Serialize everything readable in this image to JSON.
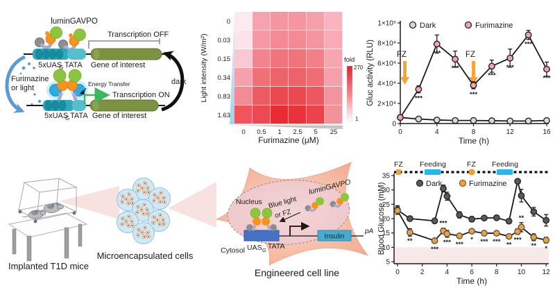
{
  "colors": {
    "teal_dna": "#2fa9bd",
    "teal_dark": "#14869c",
    "tata_light": "#55c0cd",
    "gene_olive": "#7b9240",
    "green_protein": "#8cc63f",
    "orange_protein": "#f7941e",
    "gray_protein": "#8c8e90",
    "purple_link": "#b8a5ce",
    "blue_lum": "#2fabe1",
    "blue_arrow": "#5b9bd5",
    "green_on": "#3eb75f",
    "fz_arrow": "#f5a43c",
    "fz_label": "#f0a13c",
    "feeding": "#29b6ea",
    "dark_series_top": "#d9d9d9",
    "fur_series_top": "#f2a5ad",
    "dark_series_bottom": "#595959",
    "fur_series_bottom": "#f0a13c",
    "capsule_blue": "#cfe9f7",
    "beam_pink": "#f3cbc7",
    "cell_salmon": "#f3a98e",
    "band_pink": "#f7e9e9"
  },
  "panels": {
    "circuit": {
      "lumingavpo": "luminGAVPO",
      "transcription_off": "Transcription OFF",
      "transcription_on": "Transcription ON",
      "energy_transfer": "Energy Transfer",
      "furimazine_line1": "Furimazine",
      "furimazine_line2": "or light",
      "dark": "dark",
      "uas": "5xUAS",
      "uas_sub": "G",
      "tata": "TATA",
      "gene": "Gene of interest"
    },
    "in_vivo": {
      "mice_label": "Implanted T1D mice",
      "capsules_label": "Microencapsulated cells",
      "cell_label": "Engineered cell line",
      "nucleus": "Nucleus",
      "cytosol": "Cytosol",
      "blue_light_line1": "Blue light",
      "blue_light_line2": "or FZ",
      "lumingavpo": "luminGAVPO",
      "uas": "UAS",
      "uas_sub": "G",
      "tata": "TATA",
      "insulin": "Insulin",
      "pa": "pA"
    }
  },
  "chart_data": [
    {
      "type": "heatmap",
      "xlabel": "Furimazine (μM)",
      "ylabel": "Light intensity (W/m²)",
      "x_ticks": [
        "0",
        "0.5",
        "1",
        "2.5",
        "5",
        "25"
      ],
      "y_ticks": [
        "0",
        "0.03",
        "0.15",
        "0.34",
        "0.83",
        "1.63"
      ],
      "colorbar": {
        "label": "fold",
        "max": "270",
        "min": "1"
      },
      "values": [
        [
          1,
          60,
          75,
          75,
          65,
          40
        ],
        [
          3,
          75,
          95,
          95,
          85,
          50
        ],
        [
          15,
          95,
          115,
          115,
          105,
          55
        ],
        [
          45,
          120,
          140,
          140,
          130,
          60
        ],
        [
          70,
          160,
          185,
          185,
          170,
          65
        ],
        [
          95,
          185,
          270,
          255,
          200,
          80
        ]
      ],
      "colors": [
        [
          "#fdeaf1",
          "#f7a3ad",
          "#f595a0",
          "#f595a0",
          "#f69fa9",
          "#f9b4bf"
        ],
        [
          "#fce3ea",
          "#f59aa4",
          "#f48a94",
          "#f48a94",
          "#f5959f",
          "#f8abb5"
        ],
        [
          "#f9c8d3",
          "#f3848d",
          "#f1747d",
          "#f1747d",
          "#f37f88",
          "#f7a5b0"
        ],
        [
          "#f5a1ab",
          "#f07078",
          "#ee626a",
          "#ee626a",
          "#f06d75",
          "#f5a0ab"
        ],
        [
          "#f28b93",
          "#ed5a62",
          "#eb4850",
          "#eb4850",
          "#ed575e",
          "#f3959e"
        ],
        [
          "#f3545c",
          "#eb4a52",
          "#e92b35",
          "#e9323b",
          "#ec424a",
          "#f2929b"
        ]
      ]
    },
    {
      "type": "line",
      "xlabel": "Time (h)",
      "ylabel": "Gluc activity (RLU)",
      "xlim": [
        0,
        16
      ],
      "ylim": [
        0,
        100000
      ],
      "x_ticks": [
        0,
        4,
        8,
        12,
        16
      ],
      "y_tick_vals": [
        0,
        20000,
        40000,
        60000,
        80000,
        100000
      ],
      "y_tick_labels": [
        "0",
        "2×10⁴",
        "4×10⁴",
        "6×10⁴",
        "8×10⁴",
        "1×10⁵"
      ],
      "annotations": [
        {
          "label": "FZ",
          "x": 0.5
        },
        {
          "label": "FZ",
          "x": 8
        }
      ],
      "series": [
        {
          "name": "Dark",
          "fill": "#d9d9d9",
          "stroke": "#222222",
          "x": [
            0,
            2,
            4,
            6,
            8,
            10,
            12,
            14,
            16
          ],
          "y": [
            6000,
            4500,
            3500,
            3000,
            3000,
            2800,
            2500,
            2500,
            3000
          ],
          "err": [
            1200,
            800,
            600,
            500,
            500,
            500,
            500,
            500,
            800
          ]
        },
        {
          "name": "Furimazine",
          "fill": "#f2a5ad",
          "stroke": "#222222",
          "x": [
            0,
            2,
            4,
            6,
            8,
            10,
            12,
            14,
            16
          ],
          "y": [
            6000,
            34000,
            79000,
            64000,
            38000,
            57000,
            65000,
            88000,
            54000
          ],
          "err": [
            1200,
            3500,
            9000,
            8000,
            3500,
            6000,
            9000,
            4500,
            7000
          ],
          "stars": [
            "",
            "***",
            "***",
            "***",
            "***",
            "***",
            "***",
            "***",
            "***"
          ],
          "stars_above": [
            false,
            false,
            false,
            false,
            false,
            false,
            false,
            false,
            false
          ]
        }
      ]
    },
    {
      "type": "line",
      "xlabel": "Time (h)",
      "ylabel": "Blood Glucose (mM)",
      "xlim": [
        0,
        12.3
      ],
      "ylim": [
        5,
        35
      ],
      "x_ticks": [
        0,
        2,
        4,
        6,
        8,
        10,
        12
      ],
      "y_tick_vals": [
        5,
        10,
        15,
        20,
        25,
        30,
        35
      ],
      "y_tick_labels": [
        "5",
        "10",
        "15",
        "20",
        "25",
        "30",
        "35"
      ],
      "normal_band": [
        5,
        10
      ],
      "timeline": {
        "items": [
          {
            "kind": "fz",
            "label": "FZ",
            "x": 0.15
          },
          {
            "kind": "feeding",
            "label": "Feeding",
            "x_start": 2.2,
            "x_end": 3.5
          },
          {
            "kind": "fz",
            "label": "FZ",
            "x": 6
          },
          {
            "kind": "feeding",
            "label": "Feeding",
            "x_start": 8.0,
            "x_end": 9.3
          }
        ]
      },
      "series": [
        {
          "name": "Dark",
          "fill": "#595959",
          "stroke": "#262626",
          "x": [
            0,
            1,
            3,
            3.7,
            4,
            5,
            6,
            7,
            8,
            9,
            9.7,
            10,
            11,
            12
          ],
          "y": [
            23,
            20,
            19.2,
            30.5,
            27.8,
            21.3,
            19.8,
            20.2,
            20.3,
            19.1,
            33,
            28,
            22.4,
            19.4
          ],
          "err": [
            1.5,
            0.7,
            0.8,
            1.2,
            1.4,
            1.1,
            0.9,
            0.6,
            0.6,
            0.8,
            0.6,
            2.2,
            1.5,
            2.0
          ]
        },
        {
          "name": "Furimazine",
          "fill": "#f0a13c",
          "stroke": "#555555",
          "x": [
            0,
            1,
            3,
            3.7,
            4,
            5,
            6,
            7,
            8,
            9,
            9.7,
            10,
            11,
            12
          ],
          "y": [
            22.8,
            15.2,
            12.3,
            15.7,
            14.7,
            14.0,
            15.6,
            14.9,
            14.9,
            13.8,
            15.5,
            17.0,
            13.5,
            12.5
          ],
          "err": [
            1.3,
            1.3,
            0.8,
            1.0,
            1.2,
            0.6,
            0.6,
            0.6,
            0.7,
            0.7,
            1.0,
            1.6,
            1.2,
            1.0
          ],
          "stars": [
            "",
            "**",
            "***",
            "***",
            "***",
            "***",
            "*",
            "***",
            "***",
            "**",
            "***",
            "**",
            "**",
            "*"
          ],
          "stars_above": [
            false,
            false,
            false,
            true,
            false,
            false,
            false,
            false,
            false,
            false,
            false,
            true,
            false,
            false
          ]
        }
      ]
    }
  ]
}
